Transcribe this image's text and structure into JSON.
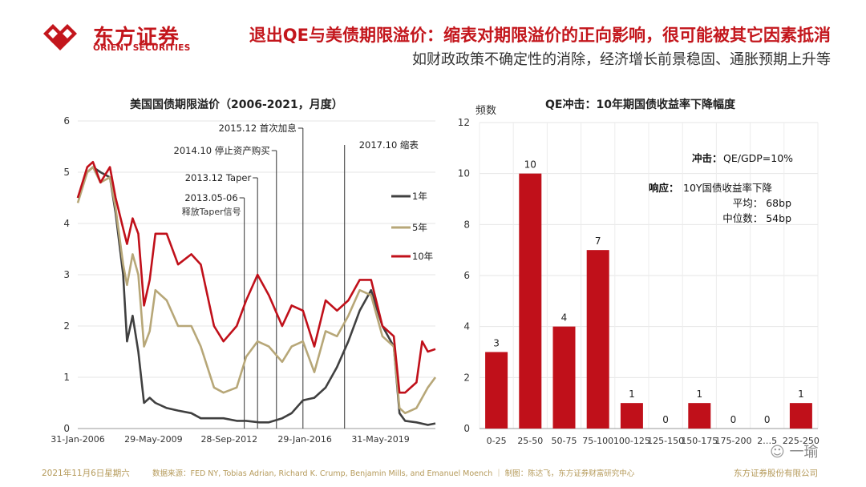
{
  "header": {
    "logo_cn": "东方证券",
    "logo_en": "ORIENT SECURITIES",
    "headline": "退出QE与美债期限溢价：缩表对期限溢价的正向影响，很可能被其它因素抵消",
    "subline": "如财政政策不确定性的消除，经济增长前景稳固、通胀预期上升等"
  },
  "colors": {
    "brand_red": "#c3161c",
    "series_1y": "#404040",
    "series_5y": "#b7a778",
    "series_10y": "#c0101a",
    "bar": "#c0101a"
  },
  "footer": {
    "date": "2021年11月6日星期六",
    "source": "数据来源：FED NY, Tobias Adrian, Richard K. Crump, Benjamin Mills, and Emanuel Moench ｜ 制图：陈达飞，东方证券财富研究中心",
    "company": "东方证券股份有限公司",
    "watermark": "一瑜"
  },
  "chart_data": [
    {
      "type": "line",
      "title": "美国国债期限溢价（2006-2021，月度）",
      "x_ticks": [
        "31-Jan-2006",
        "29-May-2009",
        "28-Sep-2012",
        "29-Jan-2016",
        "31-May-2019"
      ],
      "x_range": [
        "2006-01",
        "2021-10"
      ],
      "ylim": [
        0,
        6
      ],
      "y_ticks": [
        0,
        1,
        2,
        3,
        4,
        5,
        6
      ],
      "grid": true,
      "legend_position": "right",
      "series": [
        {
          "name": "1年",
          "points": [
            [
              "2006-01",
              4.5
            ],
            [
              "2006-06",
              5.0
            ],
            [
              "2006-09",
              5.1
            ],
            [
              "2007-01",
              5.0
            ],
            [
              "2007-06",
              4.9
            ],
            [
              "2007-09",
              4.2
            ],
            [
              "2008-01",
              3.0
            ],
            [
              "2008-03",
              1.7
            ],
            [
              "2008-06",
              2.2
            ],
            [
              "2008-09",
              1.5
            ],
            [
              "2008-12",
              0.5
            ],
            [
              "2009-03",
              0.6
            ],
            [
              "2009-06",
              0.5
            ],
            [
              "2009-12",
              0.4
            ],
            [
              "2010-06",
              0.35
            ],
            [
              "2011-01",
              0.3
            ],
            [
              "2011-06",
              0.2
            ],
            [
              "2012-01",
              0.2
            ],
            [
              "2012-06",
              0.2
            ],
            [
              "2013-01",
              0.15
            ],
            [
              "2013-06",
              0.15
            ],
            [
              "2014-01",
              0.12
            ],
            [
              "2014-06",
              0.12
            ],
            [
              "2015-01",
              0.2
            ],
            [
              "2015-06",
              0.3
            ],
            [
              "2015-12",
              0.55
            ],
            [
              "2016-06",
              0.6
            ],
            [
              "2016-12",
              0.8
            ],
            [
              "2017-06",
              1.2
            ],
            [
              "2017-12",
              1.7
            ],
            [
              "2018-06",
              2.3
            ],
            [
              "2018-12",
              2.7
            ],
            [
              "2019-06",
              2.0
            ],
            [
              "2019-12",
              1.6
            ],
            [
              "2020-03",
              0.3
            ],
            [
              "2020-06",
              0.15
            ],
            [
              "2020-12",
              0.12
            ],
            [
              "2021-06",
              0.07
            ],
            [
              "2021-10",
              0.1
            ]
          ]
        },
        {
          "name": "5年",
          "points": [
            [
              "2006-01",
              4.4
            ],
            [
              "2006-06",
              5.0
            ],
            [
              "2006-09",
              5.1
            ],
            [
              "2007-01",
              4.8
            ],
            [
              "2007-06",
              4.9
            ],
            [
              "2007-09",
              4.3
            ],
            [
              "2008-01",
              3.2
            ],
            [
              "2008-03",
              2.8
            ],
            [
              "2008-06",
              3.4
            ],
            [
              "2008-09",
              3.0
            ],
            [
              "2008-12",
              1.6
            ],
            [
              "2009-03",
              1.9
            ],
            [
              "2009-06",
              2.7
            ],
            [
              "2009-12",
              2.5
            ],
            [
              "2010-06",
              2.0
            ],
            [
              "2011-01",
              2.0
            ],
            [
              "2011-06",
              1.6
            ],
            [
              "2012-01",
              0.8
            ],
            [
              "2012-06",
              0.7
            ],
            [
              "2013-01",
              0.8
            ],
            [
              "2013-06",
              1.4
            ],
            [
              "2013-12",
              1.7
            ],
            [
              "2014-06",
              1.6
            ],
            [
              "2015-01",
              1.3
            ],
            [
              "2015-06",
              1.6
            ],
            [
              "2015-12",
              1.7
            ],
            [
              "2016-06",
              1.1
            ],
            [
              "2016-12",
              1.9
            ],
            [
              "2017-06",
              1.8
            ],
            [
              "2017-12",
              2.2
            ],
            [
              "2018-06",
              2.7
            ],
            [
              "2018-12",
              2.6
            ],
            [
              "2019-06",
              1.8
            ],
            [
              "2019-12",
              1.6
            ],
            [
              "2020-03",
              0.4
            ],
            [
              "2020-06",
              0.3
            ],
            [
              "2020-12",
              0.4
            ],
            [
              "2021-06",
              0.8
            ],
            [
              "2021-10",
              1.0
            ]
          ]
        },
        {
          "name": "10年",
          "points": [
            [
              "2006-01",
              4.5
            ],
            [
              "2006-06",
              5.1
            ],
            [
              "2006-09",
              5.2
            ],
            [
              "2007-01",
              4.8
            ],
            [
              "2007-06",
              5.1
            ],
            [
              "2007-09",
              4.5
            ],
            [
              "2008-01",
              3.9
            ],
            [
              "2008-03",
              3.6
            ],
            [
              "2008-06",
              4.1
            ],
            [
              "2008-09",
              3.8
            ],
            [
              "2008-12",
              2.4
            ],
            [
              "2009-03",
              2.9
            ],
            [
              "2009-06",
              3.8
            ],
            [
              "2009-12",
              3.8
            ],
            [
              "2010-06",
              3.2
            ],
            [
              "2011-01",
              3.4
            ],
            [
              "2011-06",
              3.2
            ],
            [
              "2012-01",
              2.0
            ],
            [
              "2012-06",
              1.7
            ],
            [
              "2013-01",
              2.0
            ],
            [
              "2013-06",
              2.5
            ],
            [
              "2013-12",
              3.0
            ],
            [
              "2014-06",
              2.6
            ],
            [
              "2015-01",
              2.0
            ],
            [
              "2015-06",
              2.4
            ],
            [
              "2015-12",
              2.3
            ],
            [
              "2016-06",
              1.6
            ],
            [
              "2016-12",
              2.5
            ],
            [
              "2017-06",
              2.3
            ],
            [
              "2017-12",
              2.5
            ],
            [
              "2018-06",
              2.9
            ],
            [
              "2018-12",
              2.9
            ],
            [
              "2019-06",
              2.0
            ],
            [
              "2019-12",
              1.8
            ],
            [
              "2020-03",
              0.7
            ],
            [
              "2020-06",
              0.7
            ],
            [
              "2020-12",
              0.9
            ],
            [
              "2021-03",
              1.7
            ],
            [
              "2021-06",
              1.5
            ],
            [
              "2021-10",
              1.55
            ]
          ]
        }
      ],
      "annotations": [
        {
          "text": "2015.12 首次加息",
          "date": "2015-12"
        },
        {
          "text": "2014.10 停止资产购买",
          "date": "2014-10"
        },
        {
          "text": "2013.12 Taper",
          "date": "2013-12"
        },
        {
          "text": "2013.05-06",
          "date": "2013-05"
        },
        {
          "text": "释放Taper信号",
          "date": "2013-05"
        },
        {
          "text": "2017.10 缩表",
          "date": "2017-10"
        }
      ]
    },
    {
      "type": "bar",
      "title": "QE冲击：10年期国债收益率下降幅度",
      "ylabel": "频数",
      "categories": [
        "0-25",
        "25-50",
        "50-75",
        "75-100",
        "100-125",
        "125-150",
        "150-175",
        "175-200",
        "200-225",
        "225-250"
      ],
      "category_labels": [
        "0-25",
        "25-50",
        "50-75",
        "75-100",
        "100-125",
        "125-150",
        "150-175",
        "175-200",
        "2…5",
        "225-250"
      ],
      "values": [
        3,
        10,
        4,
        7,
        1,
        0,
        1,
        0,
        0,
        1
      ],
      "ylim": [
        0,
        12
      ],
      "y_ticks": [
        0,
        2,
        4,
        6,
        8,
        10,
        12
      ],
      "grid": true,
      "notes": {
        "shock_label": "冲击：",
        "shock_value": "QE/GDP=10%",
        "response_label": "响应：",
        "response_value": "10Y国债收益率下降",
        "mean": "平均：   68bp",
        "median": "中位数：  54bp"
      }
    }
  ]
}
